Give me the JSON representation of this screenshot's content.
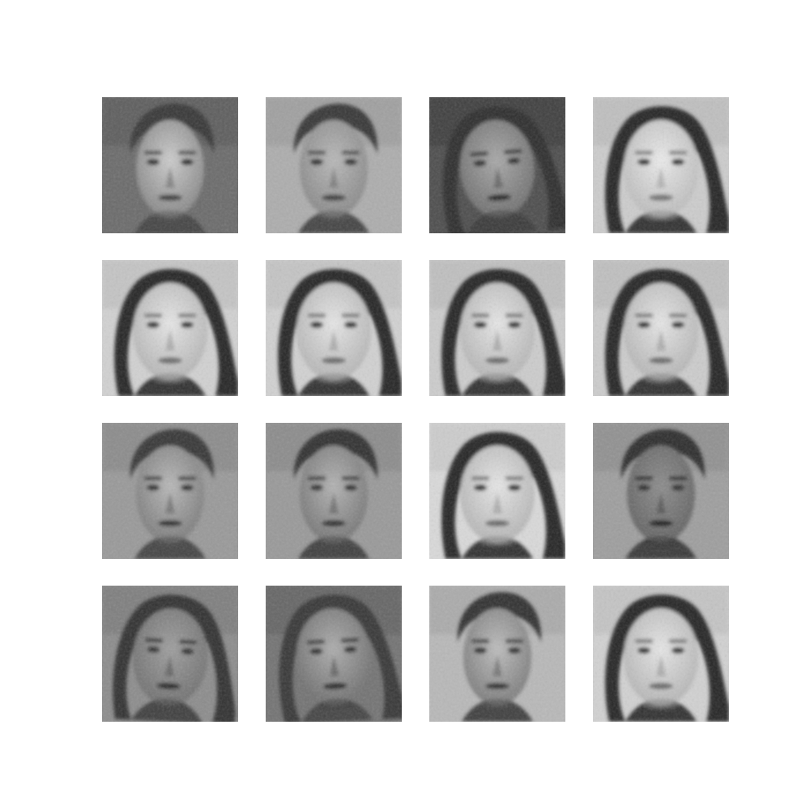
{
  "figure": {
    "rows": 4,
    "cols": 4,
    "background": "#ffffff",
    "samples": [
      {
        "kind": "male",
        "bg": 0.42,
        "hair": 0.22,
        "skin": 0.8,
        "shade": 0.55,
        "tilt": 0
      },
      {
        "kind": "male",
        "bg": 0.68,
        "hair": 0.22,
        "skin": 0.72,
        "shade": 0.55,
        "tilt": 0
      },
      {
        "kind": "female",
        "bg": 0.3,
        "hair": 0.18,
        "skin": 0.66,
        "shade": 0.45,
        "tilt": -4
      },
      {
        "kind": "female",
        "bg": 0.8,
        "hair": 0.15,
        "skin": 0.92,
        "shade": 0.75,
        "tilt": 0
      },
      {
        "kind": "female",
        "bg": 0.82,
        "hair": 0.15,
        "skin": 0.9,
        "shade": 0.72,
        "tilt": 0
      },
      {
        "kind": "female",
        "bg": 0.82,
        "hair": 0.15,
        "skin": 0.9,
        "shade": 0.72,
        "tilt": 0
      },
      {
        "kind": "female",
        "bg": 0.8,
        "hair": 0.15,
        "skin": 0.9,
        "shade": 0.72,
        "tilt": 0
      },
      {
        "kind": "female",
        "bg": 0.8,
        "hair": 0.15,
        "skin": 0.9,
        "shade": 0.72,
        "tilt": 0
      },
      {
        "kind": "male",
        "bg": 0.6,
        "hair": 0.22,
        "skin": 0.72,
        "shade": 0.5,
        "tilt": 0
      },
      {
        "kind": "male",
        "bg": 0.6,
        "hair": 0.2,
        "skin": 0.7,
        "shade": 0.48,
        "tilt": 0
      },
      {
        "kind": "female",
        "bg": 0.85,
        "hair": 0.15,
        "skin": 0.9,
        "shade": 0.72,
        "tilt": 0
      },
      {
        "kind": "male",
        "bg": 0.62,
        "hair": 0.18,
        "skin": 0.55,
        "shade": 0.4,
        "tilt": 0
      },
      {
        "kind": "female",
        "bg": 0.55,
        "hair": 0.2,
        "skin": 0.62,
        "shade": 0.45,
        "tilt": 3
      },
      {
        "kind": "female",
        "bg": 0.45,
        "hair": 0.22,
        "skin": 0.68,
        "shade": 0.45,
        "tilt": -3
      },
      {
        "kind": "male",
        "bg": 0.72,
        "hair": 0.2,
        "skin": 0.74,
        "shade": 0.5,
        "tilt": 0
      },
      {
        "kind": "female",
        "bg": 0.82,
        "hair": 0.15,
        "skin": 0.9,
        "shade": 0.72,
        "tilt": 0
      }
    ]
  }
}
